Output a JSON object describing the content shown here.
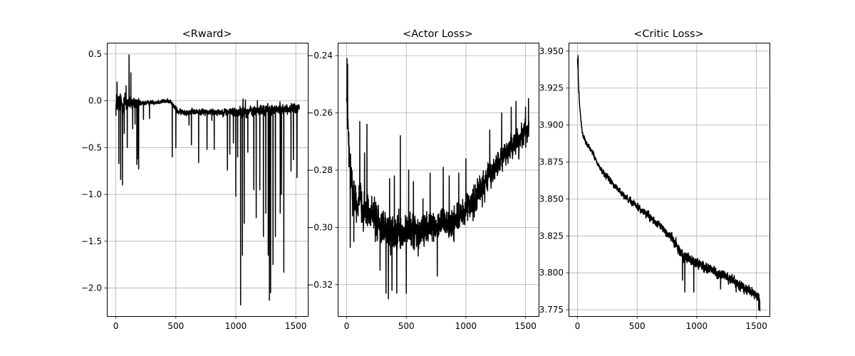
{
  "chart_data": [
    {
      "type": "line",
      "title": "<Rward>",
      "xlabel": "",
      "ylabel": "",
      "xlim": [
        -75,
        1600
      ],
      "ylim": [
        -2.3,
        0.62
      ],
      "xticks": [
        0,
        500,
        1000,
        1500
      ],
      "yticks": [
        -2.0,
        -1.5,
        -1.0,
        -0.5,
        0.0,
        0.5
      ],
      "ytick_labels": [
        "−2.0",
        "−1.5",
        "−1.0",
        "−0.5",
        "0.0",
        "0.5"
      ],
      "grid": true,
      "series_color": "#000000",
      "n_points": 1530,
      "trend_knots": [
        [
          0,
          -0.05
        ],
        [
          80,
          -0.02
        ],
        [
          200,
          -0.03
        ],
        [
          450,
          0.0
        ],
        [
          520,
          -0.12
        ],
        [
          900,
          -0.12
        ],
        [
          1000,
          -0.12
        ],
        [
          1530,
          -0.08
        ]
      ],
      "noise_knots": [
        [
          0,
          0.18
        ],
        [
          150,
          0.1
        ],
        [
          220,
          0.03
        ],
        [
          450,
          0.03
        ],
        [
          520,
          0.04
        ],
        [
          900,
          0.05
        ],
        [
          1000,
          0.08
        ],
        [
          1530,
          0.07
        ]
      ],
      "spikes": [
        [
          10,
          0.2
        ],
        [
          25,
          -0.67
        ],
        [
          40,
          -0.84
        ],
        [
          55,
          -0.9
        ],
        [
          70,
          -0.35
        ],
        [
          85,
          0.16
        ],
        [
          95,
          -0.5
        ],
        [
          110,
          0.49
        ],
        [
          125,
          0.3
        ],
        [
          140,
          -0.3
        ],
        [
          160,
          -0.25
        ],
        [
          175,
          -0.68
        ],
        [
          180,
          -0.62
        ],
        [
          190,
          -0.73
        ],
        [
          230,
          -0.2
        ],
        [
          280,
          -0.19
        ],
        [
          470,
          -0.6
        ],
        [
          500,
          -0.5
        ],
        [
          610,
          -0.26
        ],
        [
          630,
          -0.47
        ],
        [
          690,
          -0.66
        ],
        [
          760,
          -0.52
        ],
        [
          800,
          -0.21
        ],
        [
          820,
          -0.52
        ],
        [
          930,
          -0.74
        ],
        [
          950,
          -0.57
        ],
        [
          980,
          -0.45
        ],
        [
          1000,
          -1.02
        ],
        [
          1015,
          -0.6
        ],
        [
          1040,
          -2.18
        ],
        [
          1055,
          -1.65
        ],
        [
          1070,
          -1.31
        ],
        [
          1100,
          -0.55
        ],
        [
          1150,
          -0.95
        ],
        [
          1170,
          -1.25
        ],
        [
          1200,
          -0.95
        ],
        [
          1230,
          -1.45
        ],
        [
          1250,
          -1.2
        ],
        [
          1270,
          -1.65
        ],
        [
          1280,
          -2.13
        ],
        [
          1290,
          -2.05
        ],
        [
          1310,
          -1.75
        ],
        [
          1330,
          -1.45
        ],
        [
          1370,
          -1.2
        ],
        [
          1380,
          -1.0
        ],
        [
          1400,
          -1.83
        ],
        [
          1460,
          -0.75
        ],
        [
          1480,
          -0.63
        ],
        [
          1510,
          -0.82
        ],
        [
          1060,
          0.02
        ],
        [
          1080,
          0.01
        ],
        [
          1180,
          0.0
        ]
      ]
    },
    {
      "type": "line",
      "title": "<Actor Loss>",
      "xlabel": "",
      "ylabel": "",
      "xlim": [
        -75,
        1610
      ],
      "ylim": [
        -0.331,
        -0.2355
      ],
      "xticks": [
        0,
        500,
        1000,
        1500
      ],
      "yticks": [
        -0.32,
        -0.3,
        -0.28,
        -0.26,
        -0.24
      ],
      "ytick_labels": [
        "−0.32",
        "−0.30",
        "−0.28",
        "−0.26",
        "−0.24"
      ],
      "grid": true,
      "series_color": "#000000",
      "n_points": 1530,
      "trend_knots": [
        [
          0,
          -0.255
        ],
        [
          20,
          -0.275
        ],
        [
          60,
          -0.29
        ],
        [
          200,
          -0.295
        ],
        [
          350,
          -0.303
        ],
        [
          550,
          -0.302
        ],
        [
          700,
          -0.3
        ],
        [
          900,
          -0.298
        ],
        [
          1000,
          -0.295
        ],
        [
          1100,
          -0.288
        ],
        [
          1300,
          -0.276
        ],
        [
          1530,
          -0.265
        ]
      ],
      "noise_knots": [
        [
          0,
          0.01
        ],
        [
          100,
          0.008
        ],
        [
          600,
          0.008
        ],
        [
          1000,
          0.007
        ],
        [
          1530,
          0.006
        ]
      ],
      "spikes": [
        [
          3,
          -0.241
        ],
        [
          8,
          -0.243
        ],
        [
          12,
          -0.265
        ],
        [
          30,
          -0.307
        ],
        [
          60,
          -0.305
        ],
        [
          110,
          -0.263
        ],
        [
          130,
          -0.295
        ],
        [
          150,
          -0.274
        ],
        [
          170,
          -0.264
        ],
        [
          240,
          -0.305
        ],
        [
          280,
          -0.315
        ],
        [
          300,
          -0.3
        ],
        [
          330,
          -0.323
        ],
        [
          350,
          -0.325
        ],
        [
          360,
          -0.283
        ],
        [
          380,
          -0.322
        ],
        [
          400,
          -0.282
        ],
        [
          420,
          -0.323
        ],
        [
          450,
          -0.268
        ],
        [
          490,
          -0.3
        ],
        [
          500,
          -0.323
        ],
        [
          520,
          -0.28
        ],
        [
          560,
          -0.284
        ],
        [
          600,
          -0.31
        ],
        [
          640,
          -0.29
        ],
        [
          680,
          -0.303
        ],
        [
          700,
          -0.281
        ],
        [
          760,
          -0.317
        ],
        [
          790,
          -0.301
        ],
        [
          810,
          -0.279
        ],
        [
          860,
          -0.282
        ],
        [
          900,
          -0.305
        ],
        [
          940,
          -0.281
        ],
        [
          1000,
          -0.276
        ],
        [
          1200,
          -0.266
        ],
        [
          1300,
          -0.26
        ],
        [
          1380,
          -0.258
        ],
        [
          1420,
          -0.256
        ],
        [
          1500,
          -0.258
        ],
        [
          1525,
          -0.255
        ]
      ]
    },
    {
      "type": "line",
      "title": "<Critic Loss>",
      "xlabel": "",
      "ylabel": "",
      "xlim": [
        -75,
        1610
      ],
      "ylim": [
        3.7707,
        3.9557
      ],
      "xticks": [
        0,
        500,
        1000,
        1500
      ],
      "yticks": [
        3.775,
        3.8,
        3.825,
        3.85,
        3.875,
        3.9,
        3.925,
        3.95
      ],
      "ytick_labels": [
        "3.775",
        "3.800",
        "3.825",
        "3.850",
        "3.875",
        "3.900",
        "3.925",
        "3.950"
      ],
      "grid": true,
      "series_color": "#000000",
      "n_points": 1530,
      "trend_knots": [
        [
          0,
          3.945
        ],
        [
          10,
          3.925
        ],
        [
          20,
          3.91
        ],
        [
          40,
          3.895
        ],
        [
          60,
          3.89
        ],
        [
          120,
          3.882
        ],
        [
          200,
          3.869
        ],
        [
          300,
          3.86
        ],
        [
          400,
          3.851
        ],
        [
          500,
          3.845
        ],
        [
          600,
          3.838
        ],
        [
          700,
          3.831
        ],
        [
          800,
          3.823
        ],
        [
          850,
          3.816
        ],
        [
          900,
          3.81
        ],
        [
          1000,
          3.807
        ],
        [
          1100,
          3.803
        ],
        [
          1200,
          3.799
        ],
        [
          1300,
          3.795
        ],
        [
          1400,
          3.79
        ],
        [
          1500,
          3.785
        ],
        [
          1530,
          3.782
        ]
      ],
      "noise_knots": [
        [
          0,
          0.002
        ],
        [
          100,
          0.0025
        ],
        [
          700,
          0.0035
        ],
        [
          900,
          0.005
        ],
        [
          1530,
          0.0045
        ]
      ],
      "spikes": [
        [
          5,
          3.947
        ],
        [
          880,
          3.795
        ],
        [
          900,
          3.787
        ],
        [
          975,
          3.787
        ],
        [
          1200,
          3.789
        ],
        [
          1330,
          3.787
        ],
        [
          1520,
          3.775
        ],
        [
          1530,
          3.774
        ]
      ]
    }
  ]
}
